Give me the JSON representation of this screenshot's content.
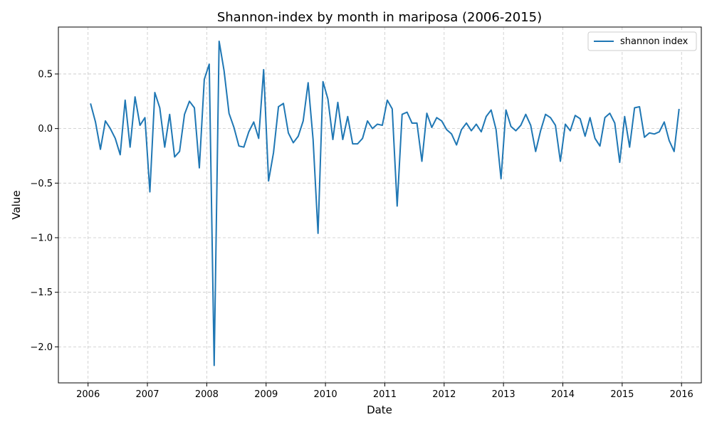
{
  "chart_data": {
    "type": "line",
    "title": "Shannon-index by month in mariposa (2006-2015)",
    "xlabel": "Date",
    "ylabel": "Value",
    "xlim": [
      "2005-07",
      "2016-05"
    ],
    "ylim": [
      -2.33,
      0.93
    ],
    "x_ticks": [
      "2006",
      "2007",
      "2008",
      "2009",
      "2010",
      "2011",
      "2012",
      "2013",
      "2014",
      "2015",
      "2016"
    ],
    "y_ticks": [
      0.5,
      0.0,
      -0.5,
      -1.0,
      -1.5,
      -2.0
    ],
    "y_tick_labels": [
      "0.5",
      "0.0",
      "−0.5",
      "−1.0",
      "−1.5",
      "−2.0"
    ],
    "grid": true,
    "legend_position": "top-right",
    "colors": {
      "series": "#1f77b4"
    },
    "series": [
      {
        "name": "shannon index",
        "start": "2006-01",
        "frequency": "monthly",
        "values": [
          0.23,
          0.06,
          -0.19,
          0.07,
          0.0,
          -0.09,
          -0.24,
          0.26,
          -0.17,
          0.29,
          0.03,
          0.1,
          -0.58,
          0.33,
          0.19,
          -0.17,
          0.13,
          -0.26,
          -0.21,
          0.13,
          0.25,
          0.19,
          -0.36,
          0.45,
          0.59,
          -2.17,
          0.8,
          0.53,
          0.14,
          0.01,
          -0.16,
          -0.17,
          -0.03,
          0.06,
          -0.09,
          0.54,
          -0.48,
          -0.22,
          0.2,
          0.23,
          -0.04,
          -0.13,
          -0.07,
          0.07,
          0.42,
          -0.1,
          -0.96,
          0.43,
          0.27,
          -0.1,
          0.24,
          -0.1,
          0.11,
          -0.14,
          -0.14,
          -0.09,
          0.07,
          0.0,
          0.04,
          0.03,
          0.26,
          0.18,
          -0.71,
          0.13,
          0.15,
          0.05,
          0.05,
          -0.3,
          0.14,
          0.01,
          0.1,
          0.07,
          -0.01,
          -0.05,
          -0.15,
          -0.01,
          0.05,
          -0.02,
          0.04,
          -0.03,
          0.11,
          0.17,
          -0.01,
          -0.46,
          0.17,
          0.02,
          -0.02,
          0.03,
          0.13,
          0.03,
          -0.21,
          -0.02,
          0.13,
          0.1,
          0.03,
          -0.3,
          0.04,
          -0.02,
          0.12,
          0.09,
          -0.07,
          0.1,
          -0.09,
          -0.16,
          0.1,
          0.14,
          0.05,
          -0.31,
          0.11,
          -0.17,
          0.19,
          0.2,
          -0.08,
          -0.04,
          -0.05,
          -0.03,
          0.06,
          -0.11,
          -0.21,
          0.18
        ]
      }
    ]
  }
}
